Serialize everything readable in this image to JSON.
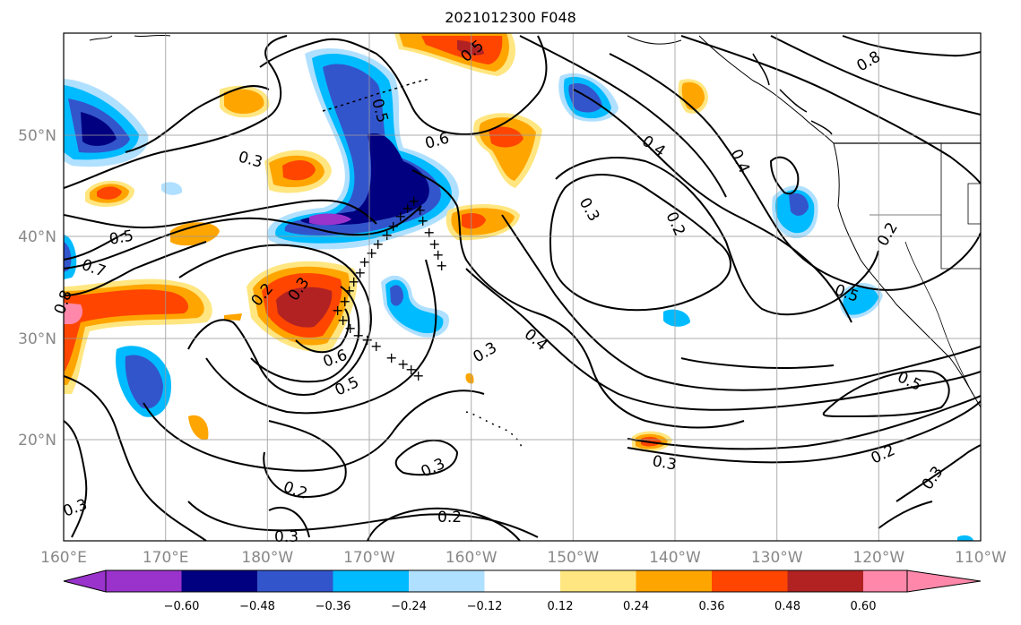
{
  "title": "2021012300 F048",
  "longitude_ticks": [
    "160°E",
    "170°E",
    "180°W",
    "170°W",
    "160°W",
    "150°W",
    "140°W",
    "130°W",
    "120°W",
    "110°W"
  ],
  "latitude_ticks": [
    "50°N",
    "40°N",
    "30°N",
    "20°N"
  ],
  "colorbar": {
    "tick_labels": [
      "−0.60",
      "−0.48",
      "−0.36",
      "−0.24",
      "−0.12",
      "0.12",
      "0.24",
      "0.36",
      "0.48",
      "0.60"
    ],
    "colors": [
      "#9933cc",
      "#000080",
      "#3355cc",
      "#00bbff",
      "#b0e0ff",
      "#ffffff",
      "#ffe680",
      "#ffa500",
      "#ff4500",
      "#b22222",
      "#ff88aa"
    ]
  },
  "contour_labels": [
    "0.3",
    "0.5",
    "0.7",
    "0.8",
    "0.2",
    "0.3",
    "0.6",
    "0.5",
    "0.5",
    "0.6",
    "0.3",
    "0.5",
    "0.4",
    "0.3",
    "0.2",
    "0.4",
    "0.8",
    "0.4",
    "0.5",
    "0.3",
    "0.5",
    "0.3",
    "0.2",
    "0.2",
    "0.2",
    "0.3",
    "0.3",
    "0.2",
    "0.3"
  ]
}
